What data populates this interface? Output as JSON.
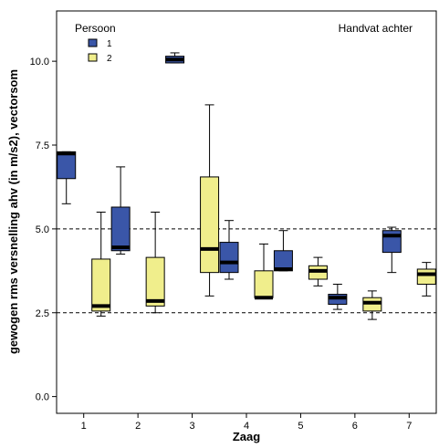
{
  "chart_data": {
    "type": "boxplot",
    "xlabel": "Zaag",
    "ylabel": "gewogen rms versnelling ahv (in m/s2), vectorsom",
    "annotation": "Handvat achter",
    "legend": {
      "title": "Persoon",
      "placement": "top-left"
    },
    "ylim": [
      -0.5,
      11.5
    ],
    "yticks": [
      "0.0",
      "2.5",
      "5.0",
      "7.5",
      "10.0"
    ],
    "reference_lines": [
      2.5,
      5.0
    ],
    "categories": [
      "1",
      "2",
      "3",
      "4",
      "5",
      "6",
      "7"
    ],
    "series": [
      {
        "name": "1",
        "color": "#3a56a8",
        "boxes": [
          {
            "min": 5.75,
            "q1": 6.5,
            "median": 7.25,
            "q3": 7.3,
            "max": 7.3
          },
          {
            "min": 4.25,
            "q1": 4.35,
            "median": 4.45,
            "q3": 5.65,
            "max": 6.85
          },
          {
            "min": 9.95,
            "q1": 9.95,
            "median": 10.05,
            "q3": 10.15,
            "max": 10.25
          },
          {
            "min": 3.5,
            "q1": 3.7,
            "median": 4.0,
            "q3": 4.6,
            "max": 5.25
          },
          {
            "min": 3.75,
            "q1": 3.75,
            "median": 3.8,
            "q3": 4.35,
            "max": 4.95
          },
          {
            "min": 2.6,
            "q1": 2.75,
            "median": 2.95,
            "q3": 3.05,
            "max": 3.35
          },
          {
            "min": 3.7,
            "q1": 4.3,
            "median": 4.8,
            "q3": 4.95,
            "max": 5.05
          }
        ]
      },
      {
        "name": "2",
        "color": "#f0ee8c",
        "boxes": [
          {
            "min": 2.4,
            "q1": 2.55,
            "median": 2.7,
            "q3": 4.1,
            "max": 5.5
          },
          {
            "min": 2.5,
            "q1": 2.7,
            "median": 2.85,
            "q3": 4.15,
            "max": 5.5
          },
          {
            "min": 3.0,
            "q1": 3.7,
            "median": 4.4,
            "q3": 6.55,
            "max": 8.7
          },
          {
            "min": 2.95,
            "q1": 2.95,
            "median": 2.95,
            "q3": 3.75,
            "max": 4.55
          },
          {
            "min": 3.3,
            "q1": 3.5,
            "median": 3.75,
            "q3": 3.9,
            "max": 4.15
          },
          {
            "min": 2.3,
            "q1": 2.55,
            "median": 2.8,
            "q3": 2.95,
            "max": 3.15
          },
          {
            "min": 3.0,
            "q1": 3.35,
            "median": 3.65,
            "q3": 3.8,
            "max": 4.0
          }
        ]
      }
    ]
  }
}
